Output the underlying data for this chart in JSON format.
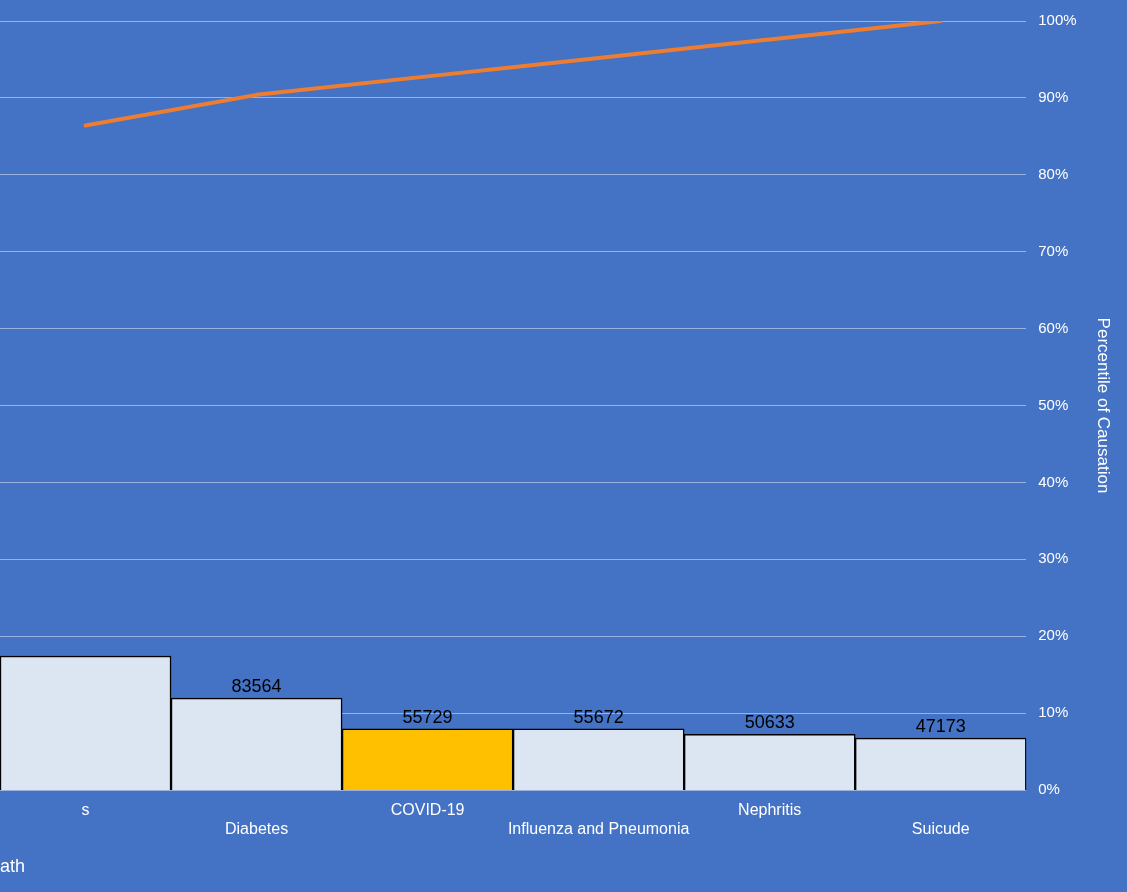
{
  "chart_data": {
    "type": "bar",
    "xlabel": "ath",
    "y2label": "Percentile of Causation",
    "categories": [
      "s",
      "Diabetes",
      "COVID-19",
      "Influenza and Pneumonia",
      "Nephritis",
      "Suicude"
    ],
    "series": [
      {
        "colors": [
          "#dce6f2",
          "#dce6f2",
          "#ffc000",
          "#dce6f2",
          "#dce6f2",
          "#dce6f2"
        ],
        "values": [
          122000,
          83564,
          55729,
          55672,
          50633,
          47173
        ],
        "value_labels": [
          null,
          "83564",
          "55729",
          "55672",
          "50633",
          "47173"
        ]
      },
      {
        "type": "line",
        "axis": "y2",
        "color": "#ed7d31",
        "values": [
          86.4,
          90.4,
          92.8,
          95.2,
          97.6,
          100
        ]
      }
    ],
    "ylim": [
      0,
      700000
    ],
    "y2lim": [
      0,
      100
    ],
    "y2ticks": [
      {
        "value": 0,
        "label": "0%"
      },
      {
        "value": 10,
        "label": "10%"
      },
      {
        "value": 20,
        "label": "20%"
      },
      {
        "value": 30,
        "label": "30%"
      },
      {
        "value": 40,
        "label": "40%"
      },
      {
        "value": 50,
        "label": "50%"
      },
      {
        "value": 60,
        "label": "60%"
      },
      {
        "value": 70,
        "label": "70%"
      },
      {
        "value": 80,
        "label": "80%"
      },
      {
        "value": 90,
        "label": "90%"
      },
      {
        "value": 100,
        "label": "100%"
      }
    ],
    "grid": "y",
    "legend": false,
    "marker": "none"
  }
}
